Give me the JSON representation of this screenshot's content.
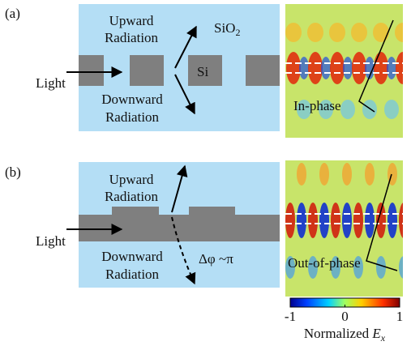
{
  "panels": [
    {
      "label": "(a)",
      "upward": [
        "Upward",
        "Radiation"
      ],
      "downward": [
        "Downward",
        "Radiation"
      ],
      "light": "Light",
      "cladding": "SiO",
      "cladding_sub": "2",
      "core": "Si",
      "phase": "In-phase"
    },
    {
      "label": "(b)",
      "upward": [
        "Upward",
        "Radiation"
      ],
      "downward": [
        "Downward",
        "Radiation"
      ],
      "light": "Light",
      "phase_diff": "Δφ ~π",
      "phase": "Out-of-phase"
    }
  ],
  "colorbar": {
    "range": [
      -1,
      1
    ],
    "ticks": [
      -1,
      0,
      1
    ],
    "label": "Normalized ",
    "label_var": "E",
    "label_sub": "x"
  }
}
